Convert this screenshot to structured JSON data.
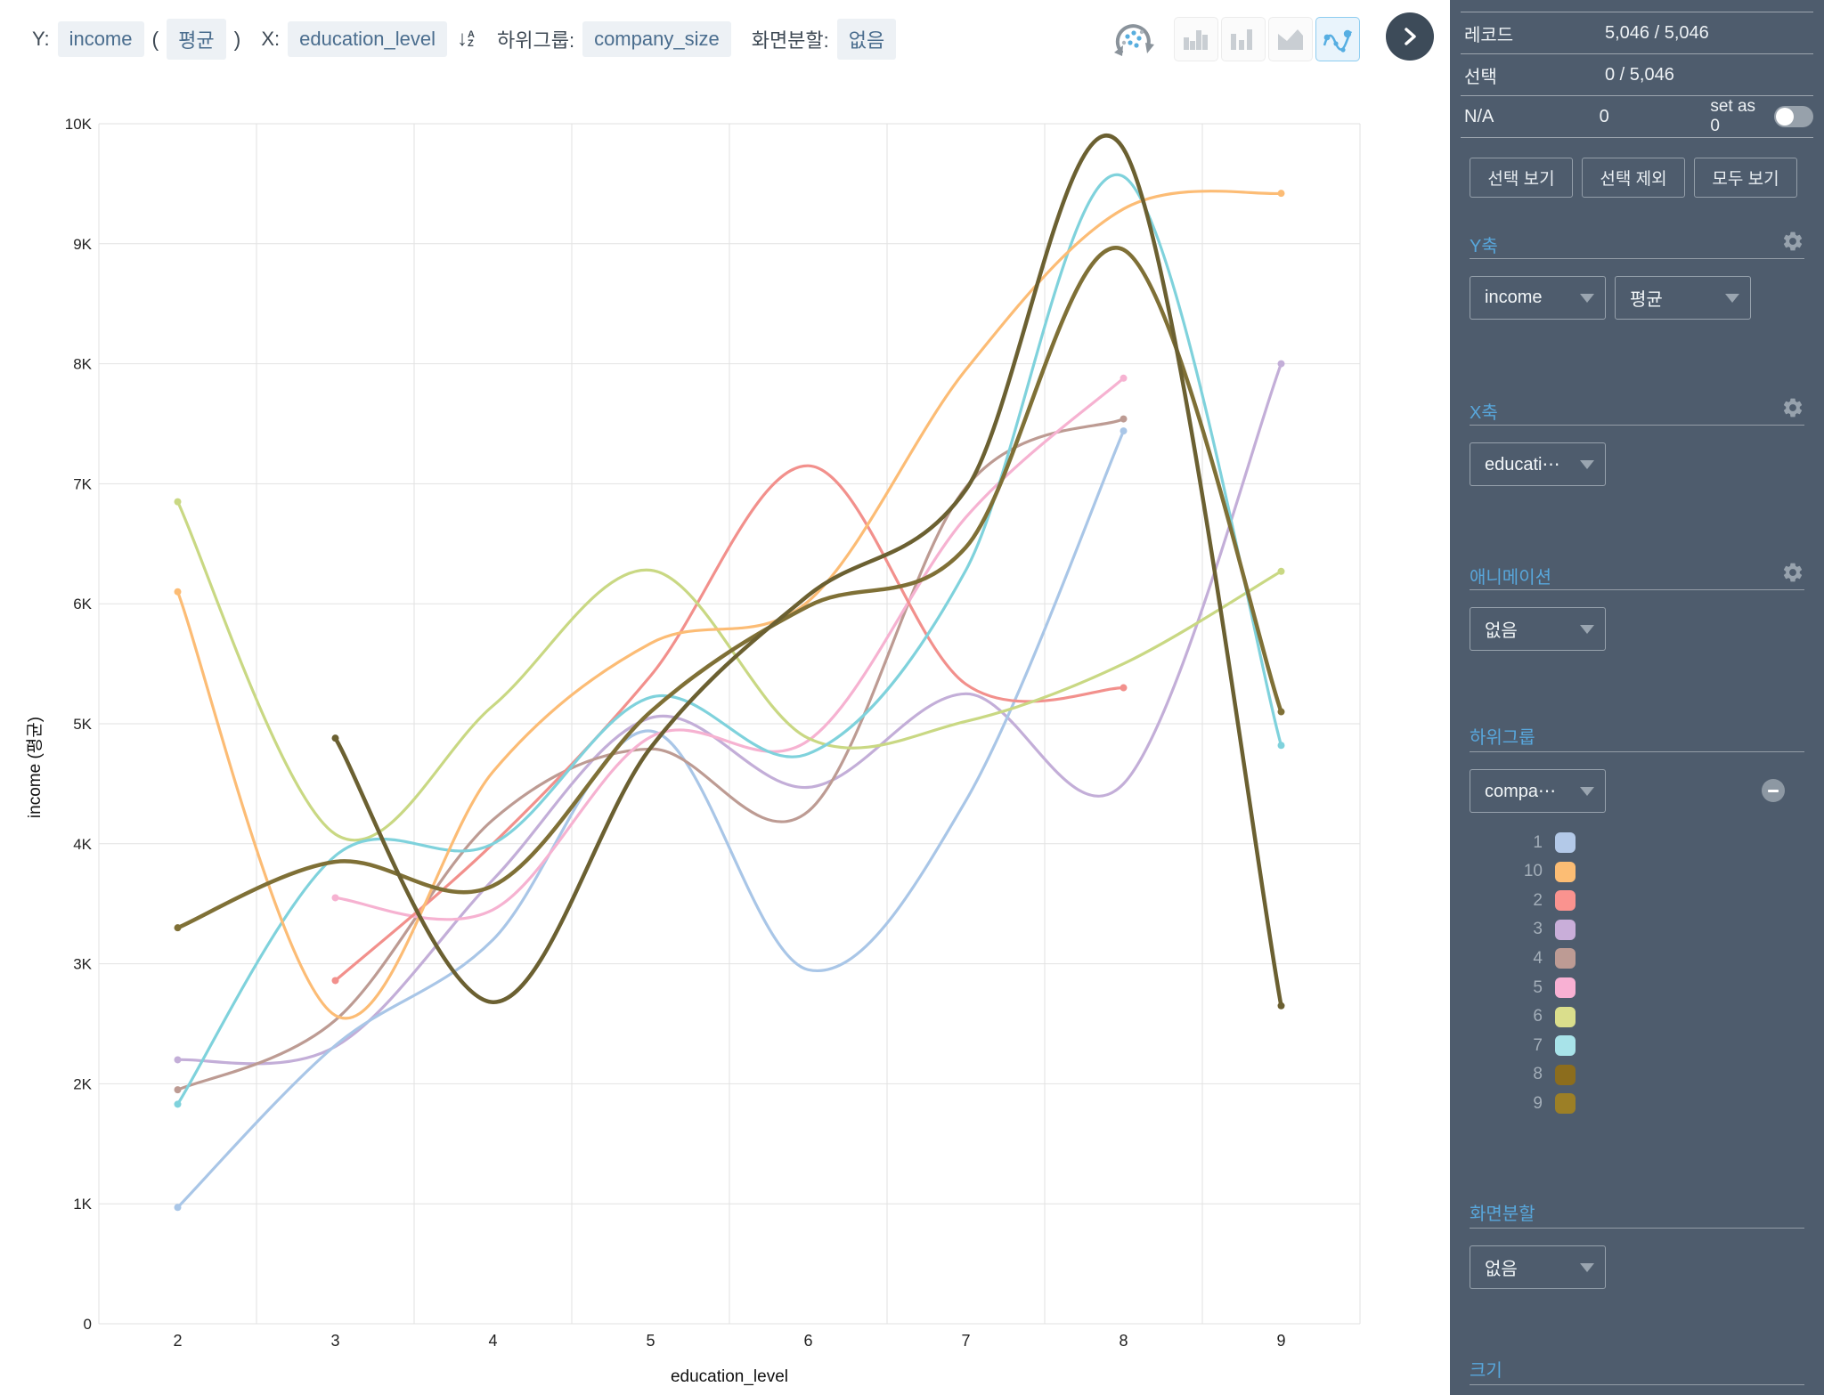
{
  "toolbar": {
    "y_label": "Y:",
    "y_field": "income",
    "paren_open": "(",
    "y_agg": "평균",
    "paren_close": ")",
    "x_label": "X:",
    "x_field": "education_level",
    "subgroup_label": "하위그룹:",
    "subgroup_field": "company_size",
    "split_label": "화면분할:",
    "split_value": "없음",
    "chart_type_icons": [
      "bar-chart",
      "grouped-bar-chart",
      "area-chart",
      "line-chart"
    ],
    "selected_chart_type": "line-chart"
  },
  "sidebar": {
    "background": "#4e5c6d",
    "accent": "#58a7dc",
    "stats": [
      {
        "label": "레코드",
        "value": "5,046 / 5,046"
      },
      {
        "label": "선택",
        "value": "0 / 5,046"
      },
      {
        "label": "N/A",
        "value": "0",
        "extra": "set as 0",
        "toggle_on": false
      }
    ],
    "buttons": [
      "선택 보기",
      "선택 제외",
      "모두 보기"
    ],
    "sections": [
      {
        "title": "Y축",
        "gear": true,
        "dropdowns": [
          "income",
          "평균"
        ]
      },
      {
        "title": "X축",
        "gear": true,
        "dropdowns": [
          "educati⋯"
        ]
      },
      {
        "title": "애니메이션",
        "gear": true,
        "dropdowns": [
          "없음"
        ]
      },
      {
        "title": "하위그룹",
        "gear": false,
        "dropdowns": [
          "compa⋯"
        ],
        "remove_button": true,
        "has_legend": true
      },
      {
        "title": "화면분할",
        "gear": false,
        "dropdowns": [
          "없음"
        ]
      },
      {
        "title": "크기",
        "gear": false,
        "dropdowns": []
      }
    ],
    "legend": [
      {
        "label": "1",
        "color": "#b3c9e8"
      },
      {
        "label": "10",
        "color": "#fcbd74"
      },
      {
        "label": "2",
        "color": "#fa938f"
      },
      {
        "label": "3",
        "color": "#c9aed9"
      },
      {
        "label": "4",
        "color": "#bd9b94"
      },
      {
        "label": "5",
        "color": "#f8b0d3"
      },
      {
        "label": "6",
        "color": "#dade8c"
      },
      {
        "label": "7",
        "color": "#a8e3e9"
      },
      {
        "label": "8",
        "color": "#8c6d1d"
      },
      {
        "label": "9",
        "color": "#9c7f26"
      }
    ]
  },
  "chart_data": {
    "type": "line",
    "smoothing": true,
    "title": "",
    "xlabel": "education_level",
    "ylabel": "income (평균)",
    "x_ticks": [
      2,
      3,
      4,
      5,
      6,
      7,
      8,
      9
    ],
    "y_tick_labels": [
      "0",
      "1K",
      "2K",
      "3K",
      "4K",
      "5K",
      "6K",
      "7K",
      "8K",
      "9K",
      "10K"
    ],
    "ylim": [
      0,
      10000
    ],
    "grid": true,
    "legend_position": "sidebar-right",
    "series": [
      {
        "name": "1",
        "color": "#a9c6e7",
        "width": 3.2,
        "x": [
          2,
          3,
          4,
          5,
          6,
          7,
          8
        ],
        "y": [
          970,
          2320,
          3200,
          4940,
          2950,
          4360,
          7440
        ]
      },
      {
        "name": "2",
        "color": "#f2908c",
        "width": 3.2,
        "x": [
          3,
          4,
          5,
          6,
          7,
          8
        ],
        "y": [
          2860,
          4000,
          5400,
          7150,
          5330,
          5300
        ]
      },
      {
        "name": "3",
        "color": "#c3aed8",
        "width": 3.2,
        "x": [
          2,
          3,
          4,
          5,
          6,
          7,
          8,
          9
        ],
        "y": [
          2200,
          2310,
          3700,
          5050,
          4470,
          5250,
          4500,
          8000
        ]
      },
      {
        "name": "4",
        "color": "#bd9b93",
        "width": 3.2,
        "x": [
          2,
          3,
          4,
          5,
          6,
          7,
          8
        ],
        "y": [
          1950,
          2530,
          4200,
          4790,
          4270,
          6970,
          7540
        ]
      },
      {
        "name": "5",
        "color": "#f6b2d1",
        "width": 3.2,
        "x": [
          3,
          4,
          5,
          6,
          7,
          8
        ],
        "y": [
          3550,
          3450,
          4890,
          4860,
          6720,
          7880
        ]
      },
      {
        "name": "6",
        "color": "#c9d883",
        "width": 3.2,
        "x": [
          2,
          3,
          4,
          5,
          6,
          7,
          8,
          9
        ],
        "y": [
          6850,
          4080,
          5150,
          6280,
          4880,
          5020,
          5500,
          6270
        ]
      },
      {
        "name": "7",
        "color": "#7fd2dc",
        "width": 3.2,
        "x": [
          2,
          3,
          4,
          5,
          6,
          7,
          8,
          9
        ],
        "y": [
          1830,
          3900,
          4000,
          5220,
          4750,
          6280,
          9560,
          4820
        ]
      },
      {
        "name": "8",
        "color": "#6b6031",
        "width": 4.5,
        "x": [
          3,
          4,
          5,
          6,
          7,
          8,
          9
        ],
        "y": [
          4880,
          2680,
          4800,
          6070,
          6950,
          9790,
          2650
        ]
      },
      {
        "name": "9",
        "color": "#7f7036",
        "width": 4.5,
        "x": [
          2,
          3,
          4,
          5,
          6,
          7,
          8,
          9
        ],
        "y": [
          3300,
          3850,
          3650,
          5100,
          5980,
          6470,
          8950,
          5100
        ]
      },
      {
        "name": "10",
        "color": "#fcbc75",
        "width": 3.2,
        "x": [
          2,
          3,
          4,
          5,
          6,
          7,
          8,
          9
        ],
        "y": [
          6100,
          2570,
          4600,
          5670,
          6020,
          7950,
          9290,
          9420
        ]
      }
    ]
  }
}
